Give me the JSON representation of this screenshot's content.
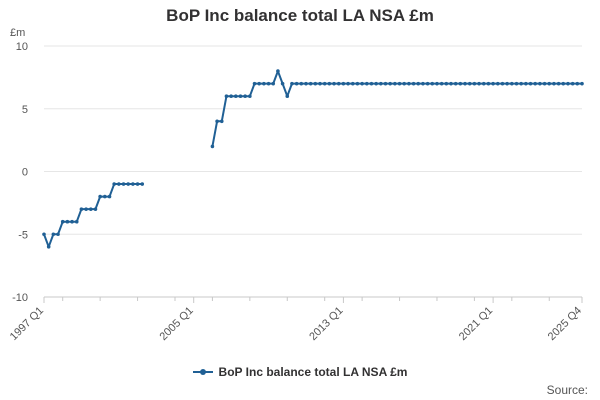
{
  "title": "BoP Inc balance total LA NSA £m",
  "source_label": "Source:",
  "colors": {
    "series": "#206095",
    "grid": "#e6e6e6",
    "axis": "#c8c8c8"
  },
  "chart_data": {
    "type": "line",
    "title": "BoP Inc balance total LA NSA £m",
    "unit_label": "£m",
    "xlabel": "",
    "ylabel": "",
    "ylim": [
      -10,
      10
    ],
    "yticks": [
      10,
      5,
      0,
      -5,
      -10
    ],
    "xlim": [
      "1997 Q1",
      "2025 Q4"
    ],
    "xticks": [
      "1997 Q1",
      "2005 Q1",
      "2013 Q1",
      "2021 Q1",
      "2025 Q4"
    ],
    "grid": true,
    "legend": "bottom-center",
    "series": [
      {
        "name": "BoP Inc balance total LA NSA £m",
        "points": [
          [
            "1997 Q1",
            -5
          ],
          [
            "1997 Q2",
            -6
          ],
          [
            "1997 Q3",
            -5
          ],
          [
            "1997 Q4",
            -5
          ],
          [
            "1998 Q1",
            -4
          ],
          [
            "1998 Q2",
            -4
          ],
          [
            "1998 Q3",
            -4
          ],
          [
            "1998 Q4",
            -4
          ],
          [
            "1999 Q1",
            -3
          ],
          [
            "1999 Q2",
            -3
          ],
          [
            "1999 Q3",
            -3
          ],
          [
            "1999 Q4",
            -3
          ],
          [
            "2000 Q1",
            -2
          ],
          [
            "2000 Q2",
            -2
          ],
          [
            "2000 Q3",
            -2
          ],
          [
            "2000 Q4",
            -1
          ],
          [
            "2001 Q1",
            -1
          ],
          [
            "2001 Q2",
            -1
          ],
          [
            "2001 Q3",
            -1
          ],
          [
            "2001 Q4",
            -1
          ],
          [
            "2002 Q1",
            -1
          ],
          [
            "2002 Q2",
            -1
          ],
          [
            "2002 Q3",
            null
          ],
          [
            "2005 Q4",
            null
          ],
          [
            "2006 Q1",
            2
          ],
          [
            "2006 Q2",
            4
          ],
          [
            "2006 Q3",
            4
          ],
          [
            "2006 Q4",
            6
          ],
          [
            "2007 Q1",
            6
          ],
          [
            "2007 Q2",
            6
          ],
          [
            "2007 Q3",
            6
          ],
          [
            "2007 Q4",
            6
          ],
          [
            "2008 Q1",
            6
          ],
          [
            "2008 Q2",
            7
          ],
          [
            "2008 Q3",
            7
          ],
          [
            "2008 Q4",
            7
          ],
          [
            "2009 Q1",
            7
          ],
          [
            "2009 Q2",
            7
          ],
          [
            "2009 Q3",
            8
          ],
          [
            "2009 Q4",
            7
          ],
          [
            "2010 Q1",
            6
          ],
          [
            "2010 Q2",
            7
          ],
          [
            "2010 Q3",
            7
          ],
          [
            "2010 Q4",
            7
          ],
          [
            "2011 Q1",
            7
          ],
          [
            "2011 Q2",
            7
          ],
          [
            "2011 Q3",
            7
          ],
          [
            "2011 Q4",
            7
          ],
          [
            "2012 Q1",
            7
          ],
          [
            "2012 Q2",
            7
          ],
          [
            "2012 Q3",
            7
          ],
          [
            "2012 Q4",
            7
          ],
          [
            "2013 Q1",
            7
          ],
          [
            "2013 Q2",
            7
          ],
          [
            "2013 Q3",
            7
          ],
          [
            "2013 Q4",
            7
          ],
          [
            "2014 Q1",
            7
          ],
          [
            "2014 Q2",
            7
          ],
          [
            "2014 Q3",
            7
          ],
          [
            "2014 Q4",
            7
          ],
          [
            "2015 Q1",
            7
          ],
          [
            "2015 Q2",
            7
          ],
          [
            "2015 Q3",
            7
          ],
          [
            "2015 Q4",
            7
          ],
          [
            "2016 Q1",
            7
          ],
          [
            "2016 Q2",
            7
          ],
          [
            "2016 Q3",
            7
          ],
          [
            "2016 Q4",
            7
          ],
          [
            "2017 Q1",
            7
          ],
          [
            "2017 Q2",
            7
          ],
          [
            "2017 Q3",
            7
          ],
          [
            "2017 Q4",
            7
          ],
          [
            "2018 Q1",
            7
          ],
          [
            "2018 Q2",
            7
          ],
          [
            "2018 Q3",
            7
          ],
          [
            "2018 Q4",
            7
          ],
          [
            "2019 Q1",
            7
          ],
          [
            "2019 Q2",
            7
          ],
          [
            "2019 Q3",
            7
          ],
          [
            "2019 Q4",
            7
          ],
          [
            "2020 Q1",
            7
          ],
          [
            "2020 Q2",
            7
          ],
          [
            "2020 Q3",
            7
          ],
          [
            "2020 Q4",
            7
          ],
          [
            "2021 Q1",
            7
          ],
          [
            "2021 Q2",
            7
          ],
          [
            "2021 Q3",
            7
          ],
          [
            "2021 Q4",
            7
          ],
          [
            "2022 Q1",
            7
          ],
          [
            "2022 Q2",
            7
          ],
          [
            "2022 Q3",
            7
          ],
          [
            "2022 Q4",
            7
          ],
          [
            "2023 Q1",
            7
          ],
          [
            "2023 Q2",
            7
          ],
          [
            "2023 Q3",
            7
          ],
          [
            "2023 Q4",
            7
          ],
          [
            "2024 Q1",
            7
          ],
          [
            "2024 Q2",
            7
          ],
          [
            "2024 Q3",
            7
          ],
          [
            "2024 Q4",
            7
          ],
          [
            "2025 Q1",
            7
          ],
          [
            "2025 Q2",
            7
          ],
          [
            "2025 Q3",
            7
          ],
          [
            "2025 Q4",
            7
          ]
        ]
      }
    ]
  }
}
